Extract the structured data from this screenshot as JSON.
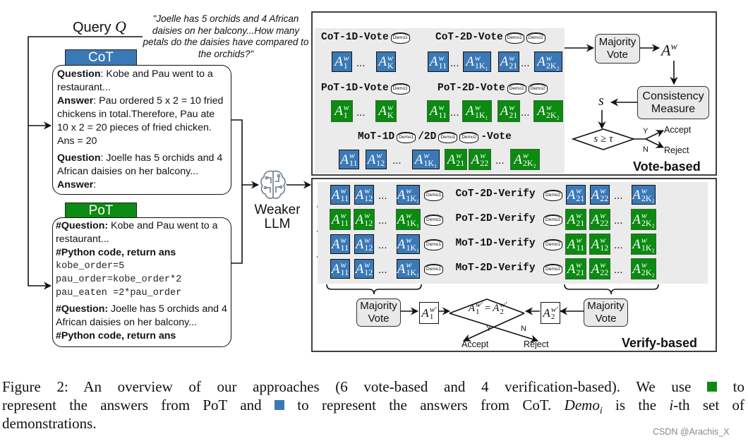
{
  "query": {
    "label": "Query",
    "symbol": "Q",
    "text": "\"Joelle has 5 orchids and 4 African daisies on her balcony...How many petals do the daisies have compared to the orchids?\""
  },
  "colors": {
    "cot": "#3b79b6",
    "pot": "#0c8a12",
    "panel_bg": "#ebebeb"
  },
  "cot": {
    "tag": "CoT",
    "blocks": [
      {
        "bold": "Question",
        "text": ": Kobe and Pau went to a restaurant..."
      },
      {
        "bold": "Answer",
        "text": ": Pau ordered 5 x 2 = 10 fried chickens in total.Therefore, Pau ate 10 x 2 = 20 pieces of fried chicken. Ans = 20"
      },
      {
        "bold": "Question",
        "text": ": Joelle has 5 orchids and 4 African daisies on her balcony..."
      },
      {
        "bold": "Answer",
        "text": ":"
      }
    ]
  },
  "pot": {
    "tag": "PoT",
    "q1_bold": "#Question:",
    "q1_text": " Kobe and Pau went to a restaurant...",
    "code_header": "#Python code, return ans",
    "code": [
      "kobe_order=5",
      "pau_order=kobe_order*2",
      "pau_eaten =2*pau_order"
    ],
    "q2_bold": "#Question:",
    "q2_text": " Joelle has 5 orchids and 4 African daisies on her balcony...",
    "code_header2": "#Python code, return ans"
  },
  "llm": {
    "label_line1": "Weaker",
    "label_line2": "LLM",
    "icon": "brain-circuit-icon"
  },
  "vote": {
    "title": "Vote-based",
    "rows": [
      {
        "label": "CoT-1D-Vote",
        "demos": [
          "Demo1"
        ],
        "answers": [
          {
            "c": "cot",
            "sub": "1"
          },
          {
            "ell": "..."
          },
          {
            "c": "cot",
            "sub": "K"
          }
        ]
      },
      {
        "label": "CoT-2D-Vote",
        "demos": [
          "Demo1",
          "Demo2"
        ],
        "answers": [
          {
            "c": "cot",
            "sub": "11"
          },
          {
            "ell": "..."
          },
          {
            "c": "cot",
            "sub": "1K₁"
          },
          {
            "c": "cot",
            "sub": "21"
          },
          {
            "ell": "..."
          },
          {
            "c": "cot",
            "sub": "2K₂"
          }
        ]
      },
      {
        "label": "PoT-1D-Vote",
        "demos": [
          "Demo1"
        ],
        "answers": [
          {
            "c": "pot",
            "sub": "1"
          },
          {
            "ell": "..."
          },
          {
            "c": "pot",
            "sub": "K"
          }
        ]
      },
      {
        "label": "PoT-2D-Vote",
        "demos": [
          "Demo1",
          "Demo2"
        ],
        "answers": [
          {
            "c": "pot",
            "sub": "11"
          },
          {
            "ell": "..."
          },
          {
            "c": "pot",
            "sub": "1K₁"
          },
          {
            "c": "pot",
            "sub": "21"
          },
          {
            "ell": "..."
          },
          {
            "c": "pot",
            "sub": "2K₂"
          }
        ]
      }
    ],
    "mot": {
      "label_a": "MoT-1D",
      "demo_a": "Demo1",
      "label_b": "/2D",
      "demo_b1": "Demo1",
      "demo_b2": "Demo2",
      "label_c": "-Vote",
      "answers": [
        {
          "c": "cot",
          "sub": "11"
        },
        {
          "c": "cot",
          "sub": "12"
        },
        {
          "ell": "..."
        },
        {
          "c": "cot",
          "sub": "1K₁"
        },
        {
          "c": "pot",
          "sub": "21"
        },
        {
          "c": "pot",
          "sub": "22"
        },
        {
          "ell": "..."
        },
        {
          "c": "pot",
          "sub": "2K₂"
        }
      ]
    },
    "majority": "Majority Vote",
    "result": "A",
    "result_sup": "w",
    "consistency": "Consistency Measure",
    "s": "s",
    "condition": "s ≥ τ",
    "yes": "Y",
    "no": "N",
    "accept": "Accept",
    "reject": "Reject"
  },
  "verify": {
    "title": "Verify-based",
    "rows": [
      {
        "label": "CoT-2D-Verify",
        "demo_left": "Demo1",
        "demo_right": "Demo2",
        "left": [
          {
            "c": "cot",
            "sub": "11"
          },
          {
            "c": "cot",
            "sub": "12"
          },
          {
            "ell": "..."
          },
          {
            "c": "cot",
            "sub": "1K₁"
          }
        ],
        "right": [
          {
            "c": "cot",
            "sub": "21"
          },
          {
            "c": "cot",
            "sub": "22"
          },
          {
            "ell": "..."
          },
          {
            "c": "cot",
            "sub": "2K₂"
          }
        ]
      },
      {
        "label": "PoT-2D-Verify",
        "demo_left": "Demo1",
        "demo_right": "Demo2",
        "left": [
          {
            "c": "pot",
            "sub": "11"
          },
          {
            "c": "pot",
            "sub": "12"
          },
          {
            "ell": "..."
          },
          {
            "c": "pot",
            "sub": "1K₁"
          }
        ],
        "right": [
          {
            "c": "pot",
            "sub": "21"
          },
          {
            "c": "pot",
            "sub": "22"
          },
          {
            "ell": "..."
          },
          {
            "c": "pot",
            "sub": "2K₂"
          }
        ]
      },
      {
        "label": "MoT-1D-Verify",
        "demo_left": "Demo1",
        "demo_right": "Demo1",
        "left": [
          {
            "c": "cot",
            "sub": "11"
          },
          {
            "c": "cot",
            "sub": "12"
          },
          {
            "ell": "..."
          },
          {
            "c": "cot",
            "sub": "1K₁"
          }
        ],
        "right": [
          {
            "c": "pot",
            "sub": "11"
          },
          {
            "c": "pot",
            "sub": "12"
          },
          {
            "ell": "..."
          },
          {
            "c": "pot",
            "sub": "1K₂"
          }
        ]
      },
      {
        "label": "MoT-2D-Verify",
        "demo_left": "Demo1",
        "demo_right": "Demo2",
        "left": [
          {
            "c": "cot",
            "sub": "11"
          },
          {
            "c": "cot",
            "sub": "12"
          },
          {
            "ell": "..."
          },
          {
            "c": "cot",
            "sub": "1K₁"
          }
        ],
        "right": [
          {
            "c": "pot",
            "sub": "21"
          },
          {
            "c": "pot",
            "sub": "22"
          },
          {
            "ell": "..."
          },
          {
            "c": "pot",
            "sub": "2K₂"
          }
        ]
      }
    ],
    "majority_left": "Majority Vote",
    "majority_right": "Majority Vote",
    "a1": "A",
    "a1_sup": "w′",
    "a1_sub": "1",
    "a2": "A",
    "a2_sup": "w′",
    "a2_sub": "2",
    "eq_lhs": "A",
    "eq_lhs_sup": "w′",
    "eq_lhs_sub": "1",
    "eq_op": "=",
    "eq_rhs": "A",
    "eq_rhs_sup": "w′",
    "eq_rhs_sub": "2",
    "yes": "Y",
    "no": "N",
    "accept": "Accept",
    "reject": "Reject"
  },
  "caption": {
    "l1a": "Figure 2:  An overview of our approaches (6 vote-based and 4 verification-based).  We use ",
    "l1b": " to",
    "l2a": "represent the answers from PoT and ",
    "l2b": " to represent the answers from CoT. ",
    "demo": "Demo",
    "demo_sub": "i",
    "l2c": " is the ",
    "i": "i",
    "l2d": "-th set of",
    "l3": "demonstrations."
  },
  "watermark": "CSDN @Arachis_X"
}
